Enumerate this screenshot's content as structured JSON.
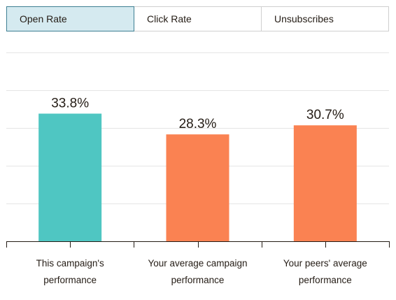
{
  "tabs": [
    {
      "label": "Open Rate",
      "active": true
    },
    {
      "label": "Click Rate",
      "active": false
    },
    {
      "label": "Unsubscribes",
      "active": false
    }
  ],
  "chart_data": {
    "type": "bar",
    "categories": [
      [
        "This campaign's",
        "performance"
      ],
      [
        "Your average campaign",
        "performance"
      ],
      [
        "Your peers' average",
        "performance"
      ]
    ],
    "values": [
      33.8,
      28.3,
      30.7
    ],
    "value_labels": [
      "33.8%",
      "28.3%",
      "30.7%"
    ],
    "colors": [
      "#4fc6c2",
      "#fa8252",
      "#fa8252"
    ],
    "ylim": [
      0,
      50
    ],
    "grid": true,
    "title": "",
    "xlabel": "",
    "ylabel": ""
  }
}
